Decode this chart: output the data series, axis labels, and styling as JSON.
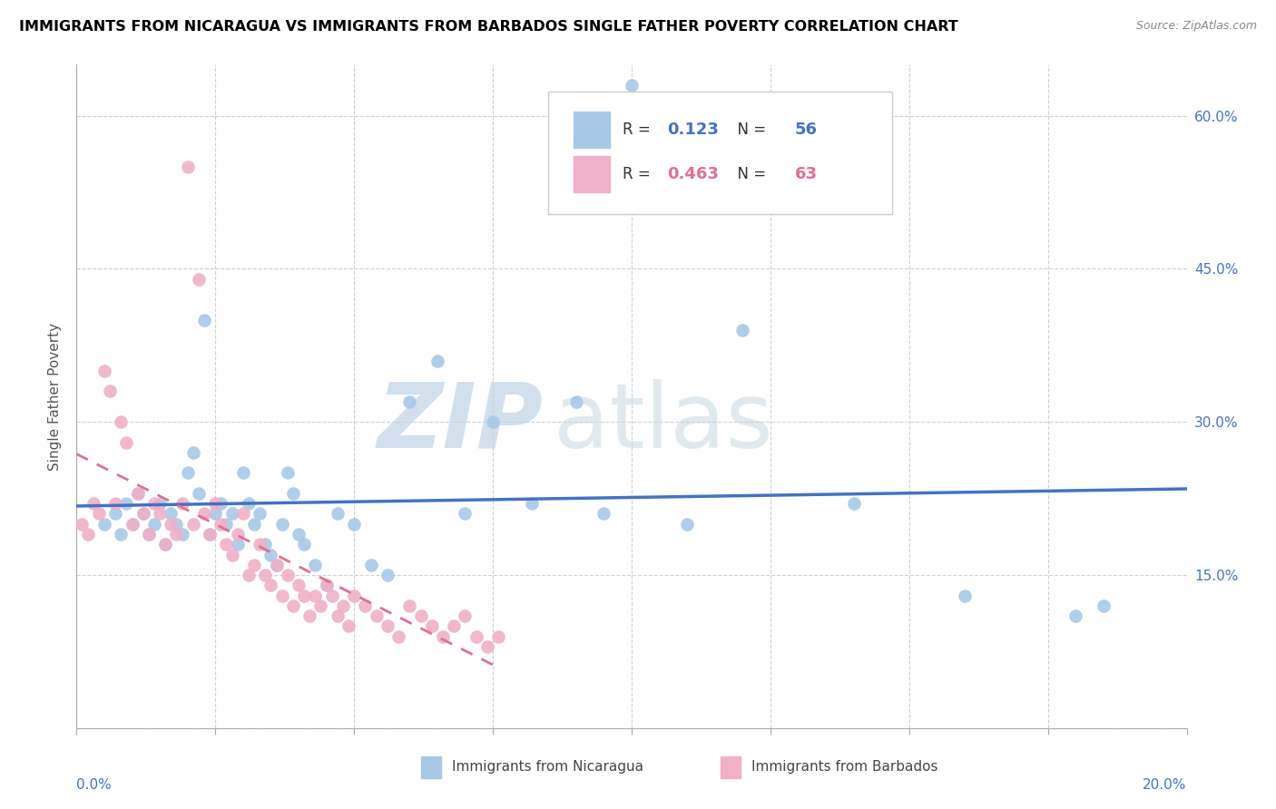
{
  "title": "IMMIGRANTS FROM NICARAGUA VS IMMIGRANTS FROM BARBADOS SINGLE FATHER POVERTY CORRELATION CHART",
  "source": "Source: ZipAtlas.com",
  "ylabel": "Single Father Poverty",
  "right_yticks": [
    0.0,
    0.15,
    0.3,
    0.45,
    0.6
  ],
  "right_yticklabels": [
    "",
    "15.0%",
    "30.0%",
    "45.0%",
    "60.0%"
  ],
  "xlim": [
    0.0,
    0.2
  ],
  "ylim": [
    0.0,
    0.65
  ],
  "nicaragua_color": "#a8c8e8",
  "barbados_color": "#f0b0c8",
  "regression_nicaragua_color": "#4472c4",
  "regression_barbados_color": "#e07090",
  "R_nicaragua": 0.123,
  "N_nicaragua": 56,
  "R_barbados": 0.463,
  "N_barbados": 63,
  "legend_label_nicaragua": "Immigrants from Nicaragua",
  "legend_label_barbados": "Immigrants from Barbados",
  "watermark_zip": "ZIP",
  "watermark_atlas": "atlas",
  "nicaragua_x": [
    0.005,
    0.007,
    0.008,
    0.009,
    0.01,
    0.011,
    0.012,
    0.013,
    0.014,
    0.015,
    0.016,
    0.017,
    0.018,
    0.019,
    0.02,
    0.021,
    0.022,
    0.023,
    0.024,
    0.025,
    0.026,
    0.027,
    0.028,
    0.029,
    0.03,
    0.031,
    0.032,
    0.033,
    0.034,
    0.035,
    0.036,
    0.037,
    0.038,
    0.039,
    0.04,
    0.041,
    0.043,
    0.045,
    0.047,
    0.05,
    0.053,
    0.056,
    0.06,
    0.065,
    0.07,
    0.075,
    0.082,
    0.09,
    0.095,
    0.1,
    0.11,
    0.12,
    0.14,
    0.16,
    0.18,
    0.185
  ],
  "nicaragua_y": [
    0.2,
    0.21,
    0.19,
    0.22,
    0.2,
    0.23,
    0.21,
    0.19,
    0.2,
    0.22,
    0.18,
    0.21,
    0.2,
    0.19,
    0.25,
    0.27,
    0.23,
    0.4,
    0.19,
    0.21,
    0.22,
    0.2,
    0.21,
    0.18,
    0.25,
    0.22,
    0.2,
    0.21,
    0.18,
    0.17,
    0.16,
    0.2,
    0.25,
    0.23,
    0.19,
    0.18,
    0.16,
    0.14,
    0.21,
    0.2,
    0.16,
    0.15,
    0.32,
    0.36,
    0.21,
    0.3,
    0.22,
    0.32,
    0.21,
    0.63,
    0.2,
    0.39,
    0.22,
    0.13,
    0.11,
    0.12
  ],
  "barbados_x": [
    0.001,
    0.002,
    0.003,
    0.004,
    0.005,
    0.006,
    0.007,
    0.008,
    0.009,
    0.01,
    0.011,
    0.012,
    0.013,
    0.014,
    0.015,
    0.016,
    0.017,
    0.018,
    0.019,
    0.02,
    0.021,
    0.022,
    0.023,
    0.024,
    0.025,
    0.026,
    0.027,
    0.028,
    0.029,
    0.03,
    0.031,
    0.032,
    0.033,
    0.034,
    0.035,
    0.036,
    0.037,
    0.038,
    0.039,
    0.04,
    0.041,
    0.042,
    0.043,
    0.044,
    0.045,
    0.046,
    0.047,
    0.048,
    0.049,
    0.05,
    0.052,
    0.054,
    0.056,
    0.058,
    0.06,
    0.062,
    0.064,
    0.066,
    0.068,
    0.07,
    0.072,
    0.074,
    0.076
  ],
  "barbados_y": [
    0.2,
    0.19,
    0.22,
    0.21,
    0.35,
    0.33,
    0.22,
    0.3,
    0.28,
    0.2,
    0.23,
    0.21,
    0.19,
    0.22,
    0.21,
    0.18,
    0.2,
    0.19,
    0.22,
    0.55,
    0.2,
    0.44,
    0.21,
    0.19,
    0.22,
    0.2,
    0.18,
    0.17,
    0.19,
    0.21,
    0.15,
    0.16,
    0.18,
    0.15,
    0.14,
    0.16,
    0.13,
    0.15,
    0.12,
    0.14,
    0.13,
    0.11,
    0.13,
    0.12,
    0.14,
    0.13,
    0.11,
    0.12,
    0.1,
    0.13,
    0.12,
    0.11,
    0.1,
    0.09,
    0.12,
    0.11,
    0.1,
    0.09,
    0.1,
    0.11,
    0.09,
    0.08,
    0.09
  ]
}
